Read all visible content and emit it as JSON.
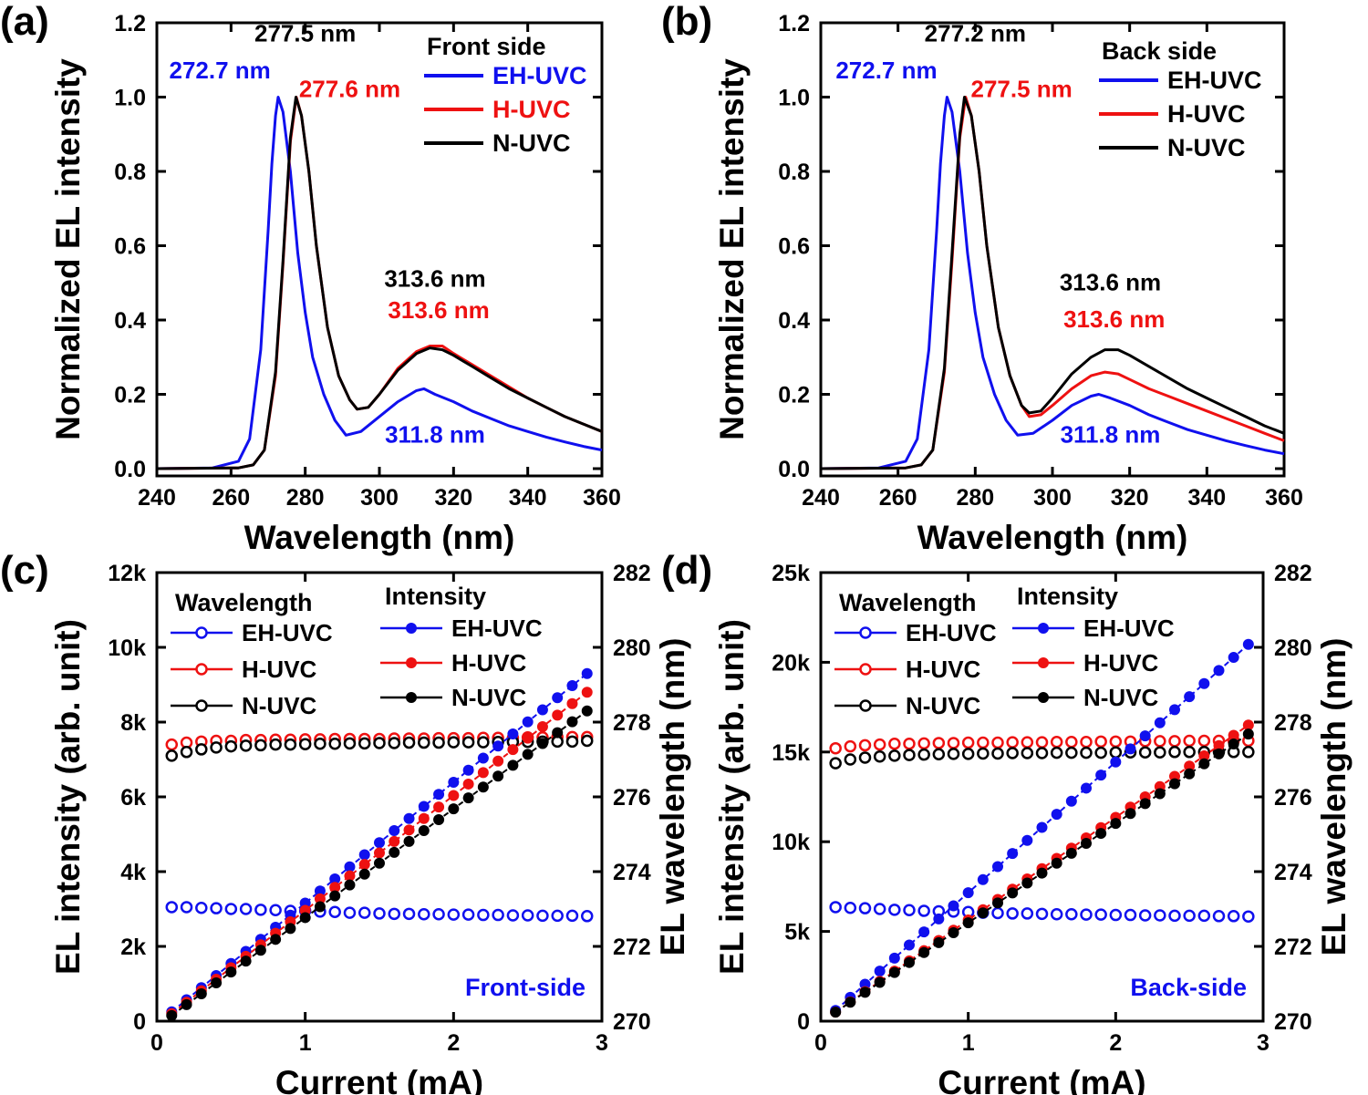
{
  "colors": {
    "EH-UVC": "#1010ee",
    "H-UVC": "#ee1111",
    "N-UVC": "#000000"
  },
  "chart_data": [
    {
      "panel": "(a)",
      "type": "line",
      "xlabel": "Wavelength (nm)",
      "ylabel": "Normalized EL intensity",
      "xlim": [
        240,
        360
      ],
      "ylim": [
        0.0,
        1.2
      ],
      "xticks": [
        "240",
        "260",
        "280",
        "300",
        "320",
        "340",
        "360"
      ],
      "yticks": [
        "0.0",
        "0.2",
        "0.4",
        "0.6",
        "0.8",
        "1.0",
        "1.2"
      ],
      "legend_title": "Front side",
      "legend_position": "top-right",
      "series": [
        {
          "name": "EH-UVC",
          "color": "#1010ee",
          "x": [
            240,
            255,
            262,
            265,
            268,
            270,
            271,
            272,
            272.7,
            274,
            276,
            278,
            280,
            282,
            285,
            288,
            291,
            295,
            300,
            305,
            310,
            312,
            315,
            320,
            325,
            330,
            335,
            340,
            345,
            350,
            355,
            360
          ],
          "y": [
            0.0,
            0.002,
            0.02,
            0.08,
            0.32,
            0.64,
            0.82,
            0.95,
            1.0,
            0.96,
            0.8,
            0.58,
            0.42,
            0.3,
            0.2,
            0.13,
            0.09,
            0.1,
            0.14,
            0.18,
            0.21,
            0.215,
            0.2,
            0.18,
            0.155,
            0.135,
            0.115,
            0.1,
            0.085,
            0.072,
            0.06,
            0.05
          ]
        },
        {
          "name": "H-UVC",
          "color": "#ee1111",
          "x": [
            240,
            262,
            266,
            269,
            272,
            274,
            276,
            277.6,
            279,
            281,
            283,
            286,
            289,
            292,
            294,
            297,
            300,
            305,
            310,
            313.6,
            317,
            320,
            325,
            330,
            335,
            340,
            345,
            350,
            355,
            360
          ],
          "y": [
            0.0,
            0.002,
            0.01,
            0.05,
            0.25,
            0.55,
            0.88,
            1.0,
            0.95,
            0.8,
            0.6,
            0.38,
            0.25,
            0.185,
            0.16,
            0.165,
            0.2,
            0.27,
            0.315,
            0.33,
            0.33,
            0.31,
            0.28,
            0.25,
            0.22,
            0.19,
            0.165,
            0.14,
            0.12,
            0.1
          ]
        },
        {
          "name": "N-UVC",
          "color": "#000000",
          "x": [
            240,
            262,
            266,
            269,
            272,
            274,
            276,
            277.5,
            279,
            281,
            283,
            286,
            289,
            292,
            294,
            297,
            300,
            305,
            310,
            313.6,
            317,
            320,
            325,
            330,
            335,
            340,
            345,
            350,
            355,
            360
          ],
          "y": [
            0.0,
            0.002,
            0.01,
            0.05,
            0.26,
            0.56,
            0.89,
            1.0,
            0.95,
            0.8,
            0.6,
            0.38,
            0.25,
            0.185,
            0.16,
            0.165,
            0.2,
            0.265,
            0.31,
            0.325,
            0.32,
            0.305,
            0.275,
            0.245,
            0.215,
            0.19,
            0.165,
            0.14,
            0.12,
            0.1
          ]
        }
      ],
      "annotations": [
        {
          "text": "272.7 nm",
          "series": "EH-UVC",
          "x": 257,
          "y": 1.05
        },
        {
          "text": "277.5 nm",
          "series": "N-UVC",
          "x": 280,
          "y": 1.15
        },
        {
          "text": "277.6 nm",
          "series": "H-UVC",
          "x": 292,
          "y": 1.0
        },
        {
          "text": "313.6 nm",
          "series": "N-UVC",
          "x": 315,
          "y": 0.49
        },
        {
          "text": "313.6 nm",
          "series": "H-UVC",
          "x": 316,
          "y": 0.405
        },
        {
          "text": "311.8 nm",
          "series": "EH-UVC",
          "x": 315,
          "y": 0.07
        }
      ]
    },
    {
      "panel": "(b)",
      "type": "line",
      "xlabel": "Wavelength (nm)",
      "ylabel": "Normalized EL intensity",
      "xlim": [
        240,
        360
      ],
      "ylim": [
        0.0,
        1.2
      ],
      "xticks": [
        "240",
        "260",
        "280",
        "300",
        "320",
        "340",
        "360"
      ],
      "yticks": [
        "0.0",
        "0.2",
        "0.4",
        "0.6",
        "0.8",
        "1.0",
        "1.2"
      ],
      "legend_title": "Back side",
      "legend_position": "top-right",
      "series": [
        {
          "name": "EH-UVC",
          "color": "#1010ee",
          "x": [
            240,
            255,
            262,
            265,
            268,
            270,
            271,
            272,
            272.7,
            274,
            276,
            278,
            280,
            282,
            285,
            288,
            291,
            295,
            300,
            305,
            310,
            312,
            315,
            320,
            325,
            330,
            335,
            340,
            345,
            350,
            355,
            360
          ],
          "y": [
            0.0,
            0.002,
            0.02,
            0.08,
            0.32,
            0.64,
            0.82,
            0.95,
            1.0,
            0.96,
            0.8,
            0.58,
            0.42,
            0.3,
            0.2,
            0.13,
            0.09,
            0.095,
            0.13,
            0.17,
            0.195,
            0.2,
            0.19,
            0.17,
            0.145,
            0.125,
            0.105,
            0.09,
            0.075,
            0.062,
            0.05,
            0.04
          ]
        },
        {
          "name": "H-UVC",
          "color": "#ee1111",
          "x": [
            240,
            262,
            266,
            269,
            272,
            274,
            276,
            277.5,
            279,
            281,
            283,
            286,
            289,
            292,
            294,
            297,
            300,
            305,
            310,
            313.6,
            317,
            320,
            325,
            330,
            335,
            340,
            345,
            350,
            355,
            360
          ],
          "y": [
            0.0,
            0.002,
            0.01,
            0.05,
            0.26,
            0.56,
            0.89,
            1.0,
            0.95,
            0.8,
            0.6,
            0.38,
            0.25,
            0.17,
            0.14,
            0.145,
            0.17,
            0.215,
            0.25,
            0.26,
            0.255,
            0.24,
            0.215,
            0.195,
            0.175,
            0.155,
            0.135,
            0.115,
            0.095,
            0.075
          ]
        },
        {
          "name": "N-UVC",
          "color": "#000000",
          "x": [
            240,
            262,
            266,
            269,
            272,
            274,
            276,
            277.2,
            279,
            281,
            283,
            286,
            289,
            292,
            294,
            297,
            300,
            305,
            310,
            313.6,
            317,
            320,
            325,
            330,
            335,
            340,
            345,
            350,
            355,
            360
          ],
          "y": [
            0.0,
            0.002,
            0.01,
            0.05,
            0.27,
            0.58,
            0.9,
            1.0,
            0.95,
            0.8,
            0.6,
            0.38,
            0.25,
            0.17,
            0.15,
            0.155,
            0.19,
            0.255,
            0.3,
            0.32,
            0.32,
            0.305,
            0.275,
            0.245,
            0.215,
            0.19,
            0.165,
            0.14,
            0.115,
            0.095
          ]
        }
      ],
      "annotations": [
        {
          "text": "272.7 nm",
          "series": "EH-UVC",
          "x": 257,
          "y": 1.05
        },
        {
          "text": "277.2 nm",
          "series": "N-UVC",
          "x": 280,
          "y": 1.15
        },
        {
          "text": "277.5 nm",
          "series": "H-UVC",
          "x": 292,
          "y": 1.0
        },
        {
          "text": "313.6 nm",
          "series": "N-UVC",
          "x": 315,
          "y": 0.48
        },
        {
          "text": "313.6 nm",
          "series": "H-UVC",
          "x": 316,
          "y": 0.38
        },
        {
          "text": "311.8 nm",
          "series": "EH-UVC",
          "x": 315,
          "y": 0.07
        }
      ]
    },
    {
      "panel": "(c)",
      "type": "scatter",
      "xlabel": "Current (mA)",
      "ylabel": "EL intensity (arb. unit)",
      "y2label": "EL wavelength (nm)",
      "xlim": [
        0,
        3
      ],
      "ylim": [
        0,
        12000
      ],
      "y2lim": [
        270,
        282
      ],
      "xticks": [
        "0",
        "1",
        "2",
        "3"
      ],
      "yticks": [
        "0",
        "2k",
        "4k",
        "6k",
        "8k",
        "10k",
        "12k"
      ],
      "y2ticks": [
        "270",
        "272",
        "274",
        "276",
        "278",
        "280",
        "282"
      ],
      "legend_wavelength_title": "Wavelength",
      "legend_intensity_title": "Intensity",
      "side_label": "Front-side",
      "x": [
        0.1,
        0.2,
        0.3,
        0.4,
        0.5,
        0.6,
        0.7,
        0.8,
        0.9,
        1.0,
        1.1,
        1.2,
        1.3,
        1.4,
        1.5,
        1.6,
        1.7,
        1.8,
        1.9,
        2.0,
        2.1,
        2.2,
        2.3,
        2.4,
        2.5,
        2.6,
        2.7,
        2.8,
        2.9
      ],
      "intensity": [
        {
          "name": "EH-UVC",
          "start": 250,
          "end": 9300
        },
        {
          "name": "H-UVC",
          "start": 200,
          "end": 8800
        },
        {
          "name": "N-UVC",
          "start": 150,
          "end": 8300
        }
      ],
      "wavelength": [
        {
          "name": "EH-UVC",
          "values": [
            273.05,
            273.05,
            273.03,
            273.02,
            273.0,
            273.0,
            272.98,
            272.97,
            272.95,
            272.95,
            272.93,
            272.92,
            272.9,
            272.9,
            272.88,
            272.87,
            272.87,
            272.86,
            272.86,
            272.85,
            272.85,
            272.84,
            272.84,
            272.83,
            272.83,
            272.82,
            272.82,
            272.82,
            272.81
          ]
        },
        {
          "name": "H-UVC",
          "values": [
            277.4,
            277.45,
            277.48,
            277.5,
            277.5,
            277.52,
            277.52,
            277.53,
            277.53,
            277.54,
            277.54,
            277.55,
            277.55,
            277.55,
            277.55,
            277.56,
            277.56,
            277.56,
            277.57,
            277.57,
            277.57,
            277.58,
            277.58,
            277.58,
            277.59,
            277.59,
            277.6,
            277.6,
            277.6
          ]
        },
        {
          "name": "N-UVC",
          "values": [
            277.1,
            277.2,
            277.27,
            277.32,
            277.35,
            277.37,
            277.38,
            277.4,
            277.4,
            277.41,
            277.42,
            277.42,
            277.43,
            277.43,
            277.44,
            277.44,
            277.45,
            277.45,
            277.45,
            277.46,
            277.46,
            277.46,
            277.47,
            277.47,
            277.47,
            277.48,
            277.48,
            277.48,
            277.5
          ]
        }
      ]
    },
    {
      "panel": "(d)",
      "type": "scatter",
      "xlabel": "Current (mA)",
      "ylabel": "EL intensity (arb. unit)",
      "y2label": "EL wavelength (nm)",
      "xlim": [
        0,
        3
      ],
      "ylim": [
        0,
        25000
      ],
      "y2lim": [
        270,
        282
      ],
      "xticks": [
        "0",
        "1",
        "2",
        "3"
      ],
      "yticks": [
        "0",
        "5k",
        "10k",
        "15k",
        "20k",
        "25k"
      ],
      "y2ticks": [
        "270",
        "272",
        "274",
        "276",
        "278",
        "280",
        "282"
      ],
      "legend_wavelength_title": "Wavelength",
      "legend_intensity_title": "Intensity",
      "side_label": "Back-side",
      "x": [
        0.1,
        0.2,
        0.3,
        0.4,
        0.5,
        0.6,
        0.7,
        0.8,
        0.9,
        1.0,
        1.1,
        1.2,
        1.3,
        1.4,
        1.5,
        1.6,
        1.7,
        1.8,
        1.9,
        2.0,
        2.1,
        2.2,
        2.3,
        2.4,
        2.5,
        2.6,
        2.7,
        2.8,
        2.9
      ],
      "intensity": [
        {
          "name": "EH-UVC",
          "start": 600,
          "end": 21000
        },
        {
          "name": "H-UVC",
          "start": 500,
          "end": 16500
        },
        {
          "name": "N-UVC",
          "start": 500,
          "end": 16000
        }
      ],
      "wavelength": [
        {
          "name": "EH-UVC",
          "values": [
            273.05,
            273.03,
            273.02,
            273.0,
            272.98,
            272.97,
            272.95,
            272.94,
            272.93,
            272.92,
            272.9,
            272.89,
            272.88,
            272.88,
            272.87,
            272.86,
            272.86,
            272.85,
            272.85,
            272.84,
            272.84,
            272.83,
            272.83,
            272.82,
            272.82,
            272.82,
            272.81,
            272.81,
            272.8
          ]
        },
        {
          "name": "H-UVC",
          "values": [
            277.3,
            277.35,
            277.38,
            277.4,
            277.42,
            277.42,
            277.43,
            277.44,
            277.44,
            277.45,
            277.45,
            277.45,
            277.46,
            277.46,
            277.46,
            277.47,
            277.47,
            277.47,
            277.48,
            277.48,
            277.48,
            277.49,
            277.49,
            277.49,
            277.5,
            277.5,
            277.5,
            277.5,
            277.5
          ]
        },
        {
          "name": "N-UVC",
          "values": [
            276.9,
            277.0,
            277.05,
            277.08,
            277.1,
            277.12,
            277.13,
            277.14,
            277.15,
            277.15,
            277.16,
            277.16,
            277.17,
            277.17,
            277.17,
            277.18,
            277.18,
            277.18,
            277.18,
            277.19,
            277.19,
            277.19,
            277.19,
            277.2,
            277.2,
            277.2,
            277.2,
            277.2,
            277.2
          ]
        }
      ]
    }
  ]
}
